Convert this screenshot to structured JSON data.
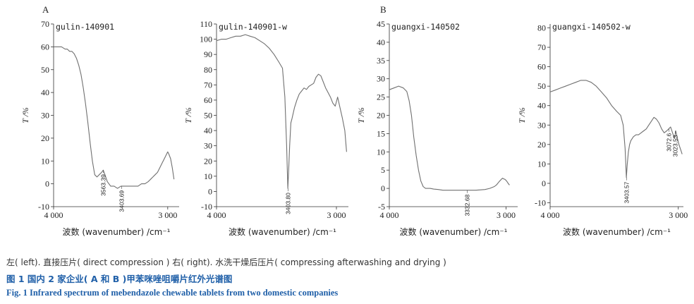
{
  "panel_letters": [
    "A",
    "B"
  ],
  "chart_data": [
    {
      "type": "line",
      "title": "gulin-140901",
      "xlabel": "波数 (wavenumber) /cm⁻¹",
      "ylabel": "T /%",
      "xlim": [
        4000,
        2900
      ],
      "ylim": [
        -10,
        70
      ],
      "x_ticks": [
        4000,
        3000
      ],
      "x_tick_labels": [
        "4 000",
        "3 000"
      ],
      "y_ticks": [
        70,
        60,
        50,
        40,
        30,
        20,
        10,
        0,
        -10
      ],
      "annotations": [
        {
          "label": "3563.39",
          "x": 3563.39,
          "y": 6
        },
        {
          "label": "3403.69",
          "x": 3403.69,
          "y": -1
        }
      ],
      "series": [
        {
          "x": [
            4000,
            3960,
            3930,
            3900,
            3880,
            3860,
            3840,
            3820,
            3800,
            3780,
            3760,
            3740,
            3720,
            3700,
            3680,
            3660,
            3640,
            3620,
            3600,
            3580,
            3565,
            3550,
            3530,
            3500,
            3470,
            3440,
            3410,
            3380,
            3350,
            3320,
            3290,
            3260,
            3230,
            3200,
            3170,
            3150,
            3130,
            3110,
            3090,
            3070,
            3050,
            3030,
            3010,
            3000,
            2990,
            2975,
            2960,
            2945
          ],
          "y": [
            60,
            60,
            60,
            59,
            59,
            58,
            58,
            57,
            55,
            52,
            48,
            42,
            35,
            27,
            18,
            10,
            4,
            3,
            4,
            5,
            6,
            4,
            1,
            -1,
            -1,
            -2,
            -1,
            -1,
            -1,
            -1,
            -1,
            -1,
            0,
            0,
            1,
            2,
            3,
            4,
            5,
            7,
            9,
            11,
            13,
            14,
            13,
            11,
            7,
            2
          ]
        }
      ]
    },
    {
      "type": "line",
      "title": "gulin-140901-w",
      "xlabel": "波数 (wavenumber) /cm⁻¹",
      "ylabel": "T /%",
      "xlim": [
        4000,
        2900
      ],
      "ylim": [
        -10,
        110
      ],
      "x_ticks": [
        4000,
        3000
      ],
      "x_tick_labels": [
        "4 000",
        "3 000"
      ],
      "y_ticks": [
        110,
        100,
        90,
        80,
        70,
        60,
        50,
        40,
        30,
        20,
        10,
        0,
        -10
      ],
      "annotations": [
        {
          "label": "3403.80",
          "x": 3403.8,
          "y": 2
        }
      ],
      "series": [
        {
          "x": [
            4000,
            3960,
            3920,
            3880,
            3840,
            3800,
            3760,
            3720,
            3680,
            3640,
            3600,
            3560,
            3520,
            3480,
            3450,
            3430,
            3415,
            3405,
            3398,
            3390,
            3380,
            3370,
            3350,
            3330,
            3310,
            3290,
            3270,
            3250,
            3230,
            3210,
            3190,
            3170,
            3150,
            3130,
            3110,
            3090,
            3070,
            3050,
            3030,
            3010,
            2990,
            2970,
            2950,
            2930,
            2915
          ],
          "y": [
            99,
            100,
            100,
            101,
            102,
            102,
            103,
            102,
            101,
            99,
            97,
            94,
            90,
            85,
            81,
            62,
            30,
            2,
            14,
            30,
            45,
            48,
            55,
            60,
            64,
            66,
            68,
            67,
            69,
            70,
            71,
            75,
            77,
            76,
            72,
            68,
            65,
            62,
            58,
            56,
            62,
            55,
            48,
            40,
            26
          ]
        }
      ]
    },
    {
      "type": "line",
      "title": "guangxi-140502",
      "xlabel": "波数 (wavenumber) /cm⁻¹",
      "ylabel": "T /%",
      "xlim": [
        4000,
        2900
      ],
      "ylim": [
        -5,
        45
      ],
      "x_ticks": [
        4000,
        3000
      ],
      "x_tick_labels": [
        "4 000",
        "3 000"
      ],
      "y_ticks": [
        45,
        40,
        35,
        30,
        25,
        20,
        15,
        10,
        5,
        0,
        -5
      ],
      "annotations": [
        {
          "label": "3332.68",
          "x": 3332.68,
          "y": -0.5
        }
      ],
      "series": [
        {
          "x": [
            4000,
            3960,
            3920,
            3880,
            3850,
            3830,
            3810,
            3790,
            3770,
            3750,
            3730,
            3710,
            3690,
            3670,
            3650,
            3620,
            3580,
            3540,
            3500,
            3460,
            3420,
            3380,
            3340,
            3300,
            3260,
            3220,
            3180,
            3140,
            3100,
            3080,
            3060,
            3040,
            3030,
            3020,
            3010,
            3000,
            2990,
            2980,
            2970
          ],
          "y": [
            27,
            27.5,
            28,
            27.5,
            26.5,
            24,
            20,
            14,
            9,
            5,
            2,
            0.5,
            0,
            0,
            0,
            -0.2,
            -0.3,
            -0.5,
            -0.5,
            -0.5,
            -0.5,
            -0.5,
            -0.5,
            -0.5,
            -0.5,
            -0.4,
            -0.3,
            0,
            0.5,
            1,
            1.8,
            2.5,
            2.8,
            2.6,
            2.5,
            2.2,
            1.8,
            1.3,
            0.9
          ]
        }
      ]
    },
    {
      "type": "line",
      "title": "guangxi-140502-w",
      "xlabel": "波数 (wavenumber) /cm⁻¹",
      "ylabel": "T /%",
      "xlim": [
        4000,
        2960
      ],
      "ylim": [
        -12,
        82
      ],
      "x_ticks": [
        4000,
        3000
      ],
      "x_tick_labels": [
        "4 000",
        "3 000"
      ],
      "y_ticks": [
        80,
        70,
        60,
        50,
        40,
        30,
        20,
        10,
        0,
        -10
      ],
      "annotations": [
        {
          "label": "3403.57",
          "x": 3403.57,
          "y": 3
        },
        {
          "label": "3072.6",
          "x": 3072.6,
          "y": 28
        },
        {
          "label": "3023.53",
          "x": 3023.53,
          "y": 27
        }
      ],
      "series": [
        {
          "x": [
            4000,
            3960,
            3920,
            3880,
            3840,
            3800,
            3760,
            3720,
            3680,
            3640,
            3600,
            3560,
            3520,
            3480,
            3450,
            3430,
            3415,
            3405,
            3398,
            3390,
            3380,
            3370,
            3350,
            3330,
            3310,
            3290,
            3270,
            3250,
            3230,
            3210,
            3190,
            3170,
            3150,
            3130,
            3110,
            3090,
            3075,
            3060,
            3045,
            3030,
            3020,
            3010,
            2995,
            2980,
            2970
          ],
          "y": [
            47,
            48,
            49,
            50,
            51,
            52,
            53,
            53,
            52,
            50,
            47,
            44,
            40,
            37,
            35,
            30,
            18,
            3,
            10,
            16,
            20,
            22,
            24,
            25,
            25,
            26,
            27,
            28,
            30,
            32,
            34,
            33,
            31,
            28,
            26,
            27,
            28,
            29,
            26,
            23,
            27,
            24,
            20,
            17,
            15
          ]
        }
      ]
    }
  ],
  "caption": {
    "note": "左( left). 直接压片( direct compression )   右( right). 水洗干燥后压片( compressing afterwashing and drying )",
    "chinese": "图 1   国内 2 家企业( A 和 B )甲苯咪唑咀嚼片红外光谱图",
    "english": "Fig. 1   Infrared spectrum of mebendazole chewable tablets from two domestic companies"
  }
}
